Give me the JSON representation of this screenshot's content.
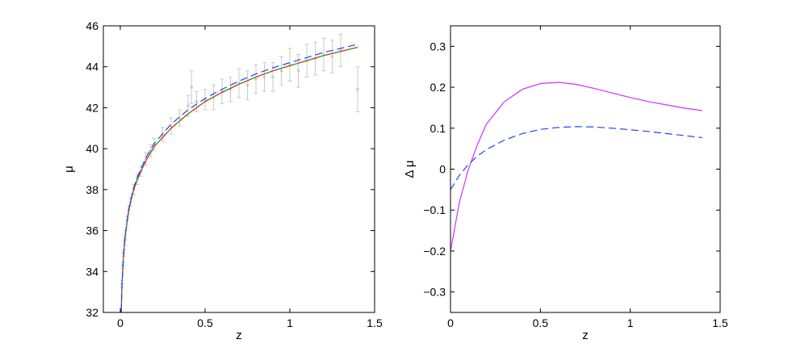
{
  "chart_data": [
    {
      "type": "scatter",
      "xlabel": "z",
      "ylabel": "μ",
      "xlim": [
        -0.1,
        1.5
      ],
      "ylim": [
        32,
        46
      ],
      "xticks": [
        0,
        0.5,
        1,
        1.5
      ],
      "xtick_labels": [
        "0",
        "0.5",
        "1",
        "1.5"
      ],
      "yticks": [
        32,
        34,
        36,
        38,
        40,
        42,
        44,
        46
      ],
      "ytick_labels": [
        "32",
        "34",
        "36",
        "38",
        "40",
        "42",
        "44",
        "46"
      ],
      "grid": false,
      "legend": "none",
      "data_points": {
        "style": "points with vertical error bars",
        "color": "#c8ccc4",
        "z": [
          0.01,
          0.015,
          0.02,
          0.025,
          0.03,
          0.04,
          0.05,
          0.06,
          0.08,
          0.1,
          0.12,
          0.15,
          0.18,
          0.2,
          0.25,
          0.3,
          0.35,
          0.4,
          0.42,
          0.45,
          0.5,
          0.55,
          0.6,
          0.65,
          0.7,
          0.75,
          0.8,
          0.85,
          0.9,
          0.95,
          1.0,
          1.05,
          1.1,
          1.15,
          1.2,
          1.25,
          1.3,
          1.4
        ],
        "mu": [
          33.4,
          34.3,
          34.9,
          35.5,
          35.8,
          36.5,
          37.0,
          37.4,
          38.0,
          38.5,
          38.9,
          39.5,
          39.9,
          40.2,
          40.7,
          41.1,
          41.5,
          42.1,
          43.0,
          42.3,
          42.4,
          42.5,
          42.8,
          42.9,
          43.2,
          43.1,
          43.4,
          43.5,
          43.5,
          43.8,
          44.1,
          43.8,
          44.3,
          44.4,
          44.6,
          44.5,
          44.8,
          42.9
        ],
        "err": [
          0.15,
          0.15,
          0.15,
          0.2,
          0.2,
          0.2,
          0.2,
          0.2,
          0.25,
          0.25,
          0.25,
          0.3,
          0.3,
          0.3,
          0.35,
          0.4,
          0.4,
          0.5,
          0.8,
          0.5,
          0.5,
          0.6,
          0.6,
          0.6,
          0.7,
          0.7,
          0.7,
          0.7,
          0.7,
          0.7,
          0.8,
          0.8,
          0.8,
          0.8,
          0.8,
          0.8,
          0.8,
          1.1
        ]
      },
      "series": [
        {
          "style": "solid",
          "color": "#ff0000",
          "x": [
            0.005,
            0.01,
            0.02,
            0.03,
            0.05,
            0.075,
            0.1,
            0.15,
            0.2,
            0.3,
            0.4,
            0.5,
            0.6,
            0.7,
            0.8,
            0.9,
            1.0,
            1.1,
            1.2,
            1.3,
            1.4
          ],
          "y": [
            32.0,
            33.4,
            34.9,
            35.8,
            37.0,
            37.9,
            38.5,
            39.4,
            40.1,
            41.0,
            41.7,
            42.3,
            42.75,
            43.15,
            43.5,
            43.8,
            44.05,
            44.3,
            44.55,
            44.75,
            44.95
          ]
        },
        {
          "style": "dash-dot",
          "color": "#22aa22",
          "x": [
            0.005,
            0.01,
            0.02,
            0.03,
            0.05,
            0.075,
            0.1,
            0.15,
            0.2,
            0.3,
            0.4,
            0.5,
            0.6,
            0.7,
            0.8,
            0.9,
            1.0,
            1.1,
            1.2,
            1.3,
            1.4
          ],
          "y": [
            32.0,
            33.4,
            34.9,
            35.8,
            37.0,
            37.9,
            38.5,
            39.4,
            40.1,
            41.0,
            41.7,
            42.3,
            42.75,
            43.15,
            43.5,
            43.8,
            44.05,
            44.3,
            44.55,
            44.75,
            44.95
          ]
        },
        {
          "style": "dashed",
          "color": "#2040ff",
          "x": [
            0.005,
            0.01,
            0.02,
            0.03,
            0.05,
            0.075,
            0.1,
            0.15,
            0.2,
            0.3,
            0.4,
            0.5,
            0.6,
            0.7,
            0.8,
            0.9,
            1.0,
            1.1,
            1.2,
            1.3,
            1.4
          ],
          "y": [
            32.0,
            33.4,
            34.9,
            35.85,
            37.05,
            38.0,
            38.6,
            39.55,
            40.25,
            41.2,
            41.9,
            42.45,
            42.9,
            43.3,
            43.65,
            43.95,
            44.2,
            44.45,
            44.7,
            44.9,
            45.1
          ]
        }
      ]
    },
    {
      "type": "line",
      "xlabel": "z",
      "ylabel": "Δ μ",
      "xlim": [
        0,
        1.5
      ],
      "ylim": [
        -0.35,
        0.35
      ],
      "xticks": [
        0,
        0.5,
        1,
        1.5
      ],
      "xtick_labels": [
        "0",
        "0.5",
        "1",
        "1.5"
      ],
      "yticks": [
        -0.3,
        -0.2,
        -0.1,
        0,
        0.1,
        0.2,
        0.3
      ],
      "ytick_labels": [
        "−0.3",
        "−0.2",
        "−0.1",
        "0",
        "0.1",
        "0.2",
        "0.3"
      ],
      "grid": false,
      "legend": "none",
      "series": [
        {
          "style": "solid",
          "color": "#cc33ff",
          "x": [
            0,
            0.05,
            0.1,
            0.15,
            0.2,
            0.3,
            0.4,
            0.5,
            0.6,
            0.7,
            0.8,
            0.9,
            1.0,
            1.1,
            1.2,
            1.3,
            1.4
          ],
          "y": [
            -0.2,
            -0.08,
            0.0,
            0.06,
            0.11,
            0.165,
            0.195,
            0.209,
            0.212,
            0.207,
            0.197,
            0.186,
            0.175,
            0.165,
            0.157,
            0.149,
            0.143
          ]
        },
        {
          "style": "dashed",
          "color": "#2040ff",
          "x": [
            0,
            0.05,
            0.1,
            0.15,
            0.2,
            0.3,
            0.4,
            0.5,
            0.6,
            0.7,
            0.8,
            0.9,
            1.0,
            1.1,
            1.2,
            1.3,
            1.4
          ],
          "y": [
            -0.05,
            -0.015,
            0.012,
            0.032,
            0.048,
            0.071,
            0.087,
            0.097,
            0.102,
            0.104,
            0.103,
            0.1,
            0.096,
            0.092,
            0.087,
            0.082,
            0.077
          ]
        }
      ]
    }
  ]
}
